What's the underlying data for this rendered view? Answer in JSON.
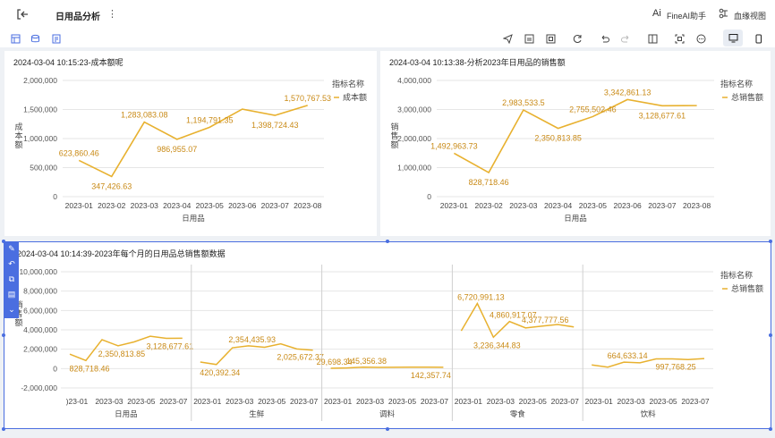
{
  "header": {
    "back_icon": "exit-icon",
    "title": "日用品分析",
    "more_icon": "more-vertical-icon",
    "ai_label": "FineAI助手",
    "lineage_label": "血缘视图"
  },
  "toolbar": {
    "left_icons": [
      "add-component-icon",
      "refresh-data-icon",
      "add-filter-icon"
    ],
    "right_icons": [
      "share-icon",
      "export-icon",
      "fullscreen-icon",
      "refresh-icon",
      "undo-icon",
      "redo-icon",
      "layout-icon",
      "screenshot-icon",
      "more-icon"
    ],
    "device_icons": [
      "desktop-icon",
      "mobile-icon"
    ]
  },
  "colors": {
    "line": "#e8b12f",
    "label": "#c98a16",
    "accent": "#4a6ee0",
    "grid": "#e6e6e6"
  },
  "charts": [
    {
      "title": "2024-03-04 10:15:23-成本额呢",
      "y_title": "成本额",
      "x_title": "日用品",
      "legend_title": "指标名称",
      "legend_item": "成本额"
    },
    {
      "title": "2024-03-04 10:13:38-分析2023年日用品的销售额",
      "y_title": "销售额",
      "x_title": "日用品",
      "legend_title": "指标名称",
      "legend_item": "总销售额"
    },
    {
      "title": "2024-03-04 10:14:39-2023年每个月的日用品总销售额数据",
      "y_title": "销售额",
      "legend_title": "指标名称",
      "legend_item": "总销售额"
    }
  ],
  "chart_data": [
    {
      "type": "line",
      "categories": [
        "2023-01",
        "2023-02",
        "2023-03",
        "2023-04",
        "2023-05",
        "2023-06",
        "2023-07",
        "2023-08"
      ],
      "series": [
        {
          "name": "成本额",
          "values": [
            623860.46,
            347426.63,
            1283083.08,
            986955.07,
            1194791.35,
            1507200,
            1398724.43,
            1570767.53
          ]
        }
      ],
      "data_labels": [
        "623,860.46",
        "347,426.63",
        "1,283,083.08",
        "986,955.07",
        "1,194,791.35",
        "",
        "1,398,724.43",
        "1,570,767.53"
      ],
      "yticks": [
        "2,000,000",
        "1,500,000",
        "1,000,000",
        "500,000",
        "0"
      ],
      "ylim": [
        0,
        2000000
      ]
    },
    {
      "type": "line",
      "categories": [
        "2023-01",
        "2023-02",
        "2023-03",
        "2023-04",
        "2023-05",
        "2023-06",
        "2023-07",
        "2023-08"
      ],
      "series": [
        {
          "name": "总销售额",
          "values": [
            1492963.73,
            828718.46,
            2983533.5,
            2350813.85,
            2755502.46,
            3342861.13,
            3128677.61,
            3135000
          ]
        }
      ],
      "data_labels": [
        "1,492,963.73",
        "828,718.46",
        "2,983,533.5",
        "2,350,813.85",
        "2,755,502.46",
        "3,342,861.13",
        "3,128,677.61",
        ""
      ],
      "yticks": [
        "4,000,000",
        "3,000,000",
        "2,000,000",
        "1,000,000",
        "0"
      ],
      "ylim": [
        0,
        4000000
      ]
    },
    {
      "type": "line",
      "yticks": [
        "10,000,000",
        "8,000,000",
        "6,000,000",
        "4,000,000",
        "2,000,000",
        "0",
        "-2,000,000"
      ],
      "ylim": [
        -2000000,
        10000000
      ],
      "x_tick_labels": [
        "2023-01",
        "2023-03",
        "2023-05",
        "2023-07"
      ],
      "first_tick_label": ")23-01",
      "groups": [
        {
          "name": "日用品",
          "values": [
            1492963.73,
            828718.46,
            2983533.5,
            2350813.85,
            2755502.46,
            3342861.13,
            3128677.61,
            3135000
          ],
          "labels": [
            "",
            "828,718.46",
            "",
            "2,350,813.85",
            "",
            "",
            "3,128,677.61",
            ""
          ]
        },
        {
          "name": "生鲜",
          "values": [
            680000,
            420392.34,
            2150000,
            2354435.93,
            2200000,
            2560000,
            2025672.37,
            1900000
          ],
          "labels": [
            "",
            "420,392.34",
            "",
            "2,354,435.93",
            "",
            "",
            "2,025,672.37",
            ""
          ]
        },
        {
          "name": "调料",
          "values": [
            29698.34,
            60000,
            145356.38,
            120000,
            135000,
            150000,
            142357.74,
            140000
          ],
          "labels": [
            "29,698.34",
            "",
            "145,356.38",
            "",
            "",
            "",
            "142,357.74",
            ""
          ]
        },
        {
          "name": "零食",
          "values": [
            3900000,
            6720991.13,
            3236344.83,
            4860917.07,
            4200000,
            4377777.56,
            4550000,
            4300000
          ],
          "labels": [
            "",
            "6,720,991.13",
            "3,236,344.83",
            "4,860,917.07",
            "",
            "4,377,777.56",
            "",
            ""
          ]
        },
        {
          "name": "饮料",
          "values": [
            380000,
            150000,
            664633.14,
            600000,
            1000000,
            997768.25,
            930000,
            1040000
          ],
          "labels": [
            "",
            "",
            "664,633.14",
            "",
            "",
            "997,768.25",
            "",
            ""
          ]
        }
      ]
    }
  ]
}
